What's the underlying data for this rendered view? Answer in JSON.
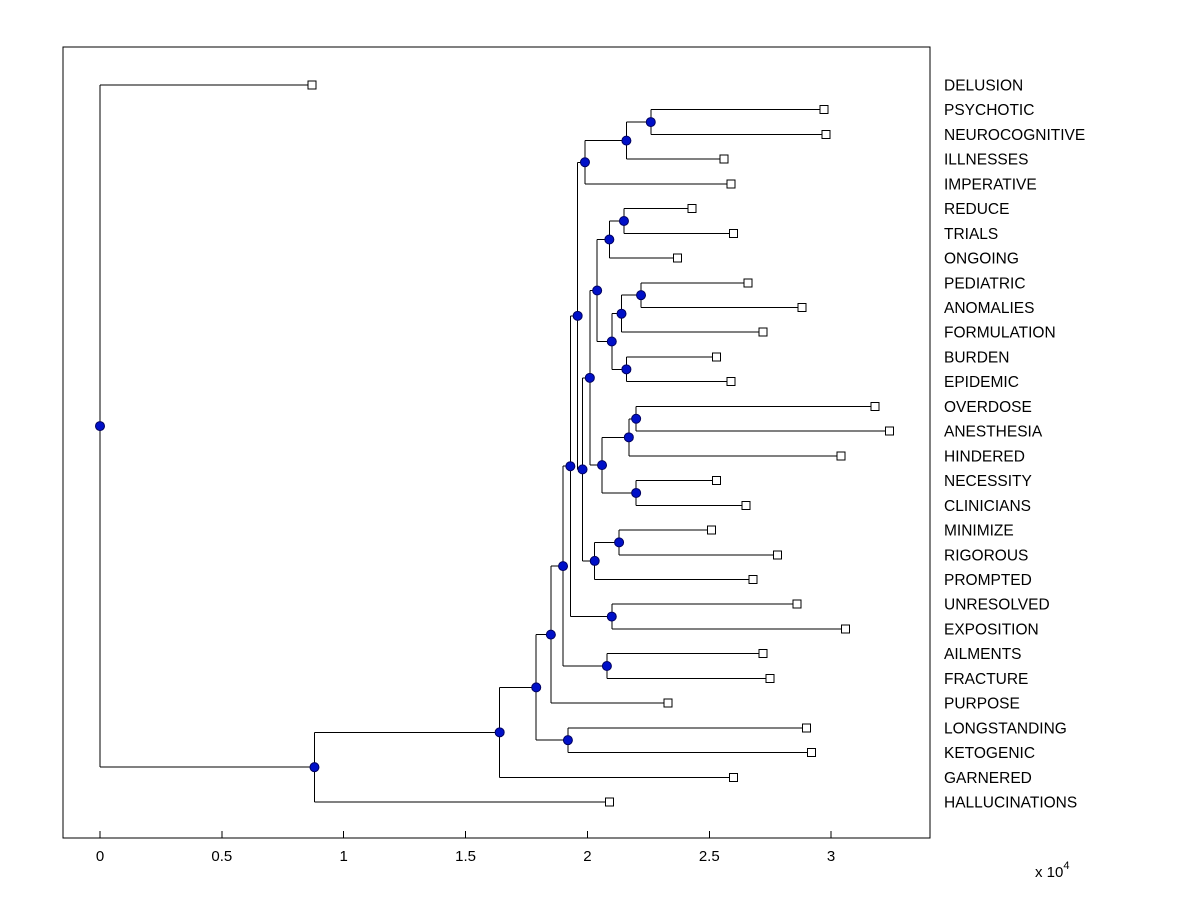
{
  "figure": {
    "background": "#FFFFFF",
    "kind": "matlab-style hierarchical cluster tree (phylogram/dendrogram), root at left, leaves at right"
  },
  "chart_data": {
    "type": "dendrogram",
    "orientation": "horizontal-root-left",
    "title": "",
    "xlabel": "",
    "ylabel": "",
    "x_axis": {
      "tick_values": [
        0,
        0.5,
        1,
        1.5,
        2,
        2.5,
        3
      ],
      "tick_labels": [
        "0",
        "0.5",
        "1",
        "1.5",
        "2",
        "2.5",
        "3"
      ],
      "range": [
        -0.152,
        3.406
      ],
      "multiplier": 10000,
      "exponent_label": {
        "base": "x 10",
        "exp": "4"
      }
    },
    "y_axis": {
      "tick_labels": [],
      "grid": false
    },
    "styles": {
      "edge_color": "#000000",
      "branch_node_fill": "#0010C8",
      "branch_node_edge": "#000060",
      "leaf_marker_fill": "#FFFFFF",
      "leaf_marker_edge": "#000000",
      "label_color": "#000000",
      "branch_marker_shape": "filled-circle",
      "leaf_marker_shape": "open-square"
    },
    "leaves": [
      {
        "label": "DELUSION",
        "x": 0.87
      },
      {
        "label": "PSYCHOTIC",
        "x": 2.97
      },
      {
        "label": "NEUROCOGNITIVE",
        "x": 2.98
      },
      {
        "label": "ILLNESSES",
        "x": 2.56
      },
      {
        "label": "IMPERATIVE",
        "x": 2.59
      },
      {
        "label": "REDUCE",
        "x": 2.43
      },
      {
        "label": "TRIALS",
        "x": 2.6
      },
      {
        "label": "ONGOING",
        "x": 2.37
      },
      {
        "label": "PEDIATRIC",
        "x": 2.66
      },
      {
        "label": "ANOMALIES",
        "x": 2.88
      },
      {
        "label": "FORMULATION",
        "x": 2.72
      },
      {
        "label": "BURDEN",
        "x": 2.53
      },
      {
        "label": "EPIDEMIC",
        "x": 2.59
      },
      {
        "label": "OVERDOSE",
        "x": 3.18
      },
      {
        "label": "ANESTHESIA",
        "x": 3.24
      },
      {
        "label": "HINDERED",
        "x": 3.04
      },
      {
        "label": "NECESSITY",
        "x": 2.53
      },
      {
        "label": "CLINICIANS",
        "x": 2.65
      },
      {
        "label": "MINIMIZE",
        "x": 2.51
      },
      {
        "label": "RIGOROUS",
        "x": 2.78
      },
      {
        "label": "PROMPTED",
        "x": 2.68
      },
      {
        "label": "UNRESOLVED",
        "x": 2.86
      },
      {
        "label": "EXPOSITION",
        "x": 3.06
      },
      {
        "label": "AILMENTS",
        "x": 2.72
      },
      {
        "label": "FRACTURE",
        "x": 2.75
      },
      {
        "label": "PURPOSE",
        "x": 2.33
      },
      {
        "label": "LONGSTANDING",
        "x": 2.9
      },
      {
        "label": "KETOGENIC",
        "x": 2.92
      },
      {
        "label": "GARNERED",
        "x": 2.6
      },
      {
        "label": "HALLUCINATIONS",
        "x": 2.09
      }
    ],
    "tree": {
      "x": 0.0,
      "children": [
        {
          "leaf": "DELUSION"
        },
        {
          "x": 0.88,
          "children": [
            {
              "x": 1.64,
              "children": [
                {
                  "x": 1.79,
                  "children": [
                    {
                      "x": 1.85,
                      "children": [
                        {
                          "x": 1.9,
                          "children": [
                            {
                              "x": 1.93,
                              "children": [
                                {
                                  "x": 1.96,
                                  "children": [
                                    {
                                      "x": 1.99,
                                      "children": [
                                        {
                                          "x": 2.16,
                                          "children": [
                                            {
                                              "x": 2.26,
                                              "children": [
                                                {
                                                  "leaf": "PSYCHOTIC"
                                                },
                                                {
                                                  "leaf": "NEUROCOGNITIVE"
                                                }
                                              ]
                                            },
                                            {
                                              "leaf": "ILLNESSES"
                                            }
                                          ]
                                        },
                                        {
                                          "leaf": "IMPERATIVE"
                                        }
                                      ]
                                    },
                                    {
                                      "x": 1.98,
                                      "children": [
                                        {
                                          "x": 2.01,
                                          "children": [
                                            {
                                              "x": 2.04,
                                              "children": [
                                                {
                                                  "x": 2.09,
                                                  "children": [
                                                    {
                                                      "x": 2.15,
                                                      "children": [
                                                        {
                                                          "leaf": "REDUCE"
                                                        },
                                                        {
                                                          "leaf": "TRIALS"
                                                        }
                                                      ]
                                                    },
                                                    {
                                                      "leaf": "ONGOING"
                                                    }
                                                  ]
                                                },
                                                {
                                                  "x": 2.1,
                                                  "children": [
                                                    {
                                                      "x": 2.14,
                                                      "children": [
                                                        {
                                                          "x": 2.22,
                                                          "children": [
                                                            {
                                                              "leaf": "PEDIATRIC"
                                                            },
                                                            {
                                                              "leaf": "ANOMALIES"
                                                            }
                                                          ]
                                                        },
                                                        {
                                                          "leaf": "FORMULATION"
                                                        }
                                                      ]
                                                    },
                                                    {
                                                      "x": 2.16,
                                                      "children": [
                                                        {
                                                          "leaf": "BURDEN"
                                                        },
                                                        {
                                                          "leaf": "EPIDEMIC"
                                                        }
                                                      ]
                                                    }
                                                  ]
                                                }
                                              ]
                                            },
                                            {
                                              "x": 2.06,
                                              "children": [
                                                {
                                                  "x": 2.17,
                                                  "children": [
                                                    {
                                                      "x": 2.2,
                                                      "children": [
                                                        {
                                                          "leaf": "OVERDOSE"
                                                        },
                                                        {
                                                          "leaf": "ANESTHESIA"
                                                        }
                                                      ]
                                                    },
                                                    {
                                                      "leaf": "HINDERED"
                                                    }
                                                  ]
                                                },
                                                {
                                                  "x": 2.2,
                                                  "children": [
                                                    {
                                                      "leaf": "NECESSITY"
                                                    },
                                                    {
                                                      "leaf": "CLINICIANS"
                                                    }
                                                  ]
                                                }
                                              ]
                                            }
                                          ]
                                        },
                                        {
                                          "x": 2.03,
                                          "children": [
                                            {
                                              "x": 2.13,
                                              "children": [
                                                {
                                                  "leaf": "MINIMIZE"
                                                },
                                                {
                                                  "leaf": "RIGOROUS"
                                                }
                                              ]
                                            },
                                            {
                                              "leaf": "PROMPTED"
                                            }
                                          ]
                                        }
                                      ]
                                    }
                                  ]
                                },
                                {
                                  "x": 2.1,
                                  "children": [
                                    {
                                      "leaf": "UNRESOLVED"
                                    },
                                    {
                                      "leaf": "EXPOSITION"
                                    }
                                  ]
                                }
                              ]
                            },
                            {
                              "x": 2.08,
                              "children": [
                                {
                                  "leaf": "AILMENTS"
                                },
                                {
                                  "leaf": "FRACTURE"
                                }
                              ]
                            }
                          ]
                        },
                        {
                          "leaf": "PURPOSE"
                        }
                      ]
                    },
                    {
                      "x": 1.92,
                      "children": [
                        {
                          "leaf": "LONGSTANDING"
                        },
                        {
                          "leaf": "KETOGENIC"
                        }
                      ]
                    }
                  ]
                },
                {
                  "leaf": "GARNERED"
                }
              ]
            },
            {
              "leaf": "HALLUCINATIONS"
            }
          ]
        }
      ]
    }
  }
}
